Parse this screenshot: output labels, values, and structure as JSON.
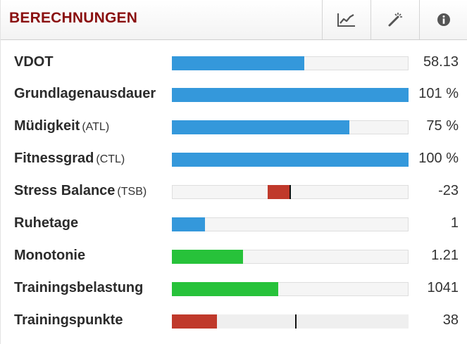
{
  "header": {
    "title": "BERECHNUNGEN",
    "buttons": [
      {
        "icon": "line-chart-icon"
      },
      {
        "icon": "magic-wand-icon"
      },
      {
        "icon": "info-icon"
      }
    ]
  },
  "colors": {
    "blue": "#3498db",
    "red": "#c0392b",
    "green": "#27c23a",
    "title": "#8a0f0f"
  },
  "rows": [
    {
      "label": "VDOT",
      "sub": "",
      "value": "58.13",
      "fill": 0.56,
      "color": "blue"
    },
    {
      "label": "Grundlagenausdauer",
      "sub": "",
      "value": "101 %",
      "fill": 1.0,
      "color": "blue"
    },
    {
      "label": "Müdigkeit",
      "sub": "(ATL)",
      "value": "75 %",
      "fill": 0.75,
      "color": "blue"
    },
    {
      "label": "Fitnessgrad",
      "sub": "(CTL)",
      "value": "100 %",
      "fill": 1.0,
      "color": "blue"
    },
    {
      "label": "Stress Balance",
      "sub": "(TSB)",
      "value": "-23",
      "fill_from": 0.405,
      "fill_to": 0.5,
      "marker": 0.495,
      "color": "red"
    },
    {
      "label": "Ruhetage",
      "sub": "",
      "value": "1",
      "fill": 0.14,
      "color": "blue"
    },
    {
      "label": "Monotonie",
      "sub": "",
      "value": "1.21",
      "fill": 0.3,
      "color": "green"
    },
    {
      "label": "Trainingsbelastung",
      "sub": "",
      "value": "1041",
      "fill": 0.45,
      "color": "green"
    },
    {
      "label": "Trainingspunkte",
      "sub": "",
      "value": "38",
      "fill": 0.19,
      "marker": 0.52,
      "color": "red",
      "plain": true
    }
  ]
}
